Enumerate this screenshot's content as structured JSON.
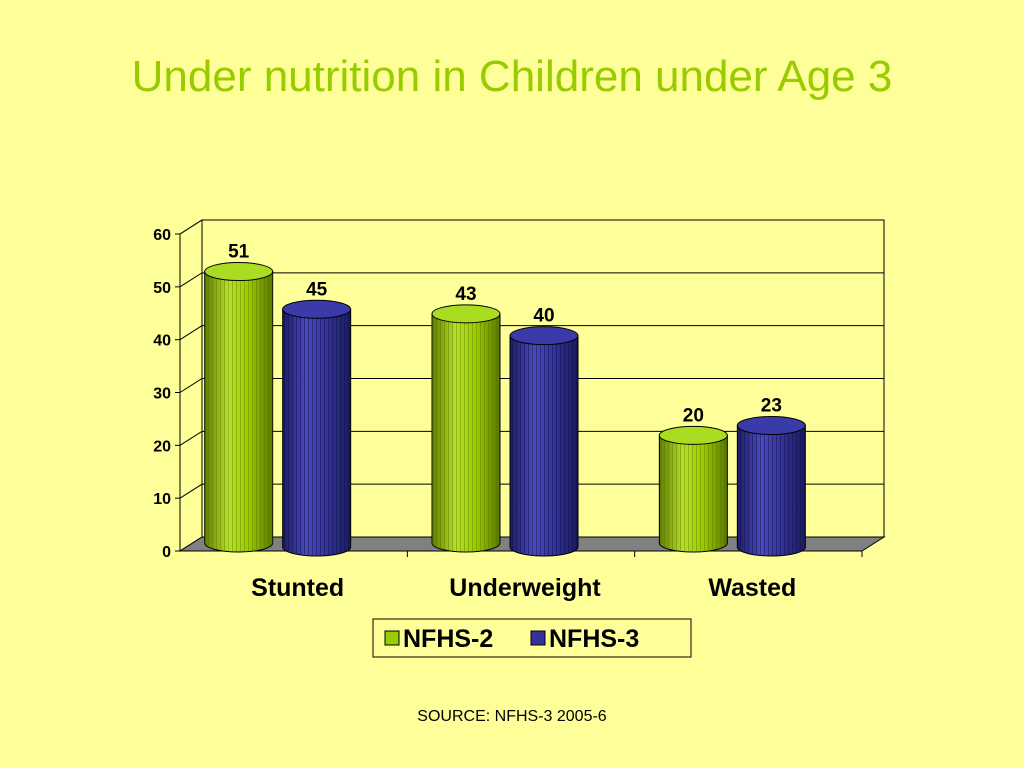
{
  "slide": {
    "title": "Under nutrition in Children under Age 3",
    "source": "SOURCE: NFHS-3 2005-6"
  },
  "colors": {
    "background": "#ffff99",
    "title": "#99cc00",
    "nfhs2": "#99cc00",
    "nfhs3": "#333399",
    "floor": "#808080"
  },
  "chart_data": {
    "type": "bar",
    "style": "3d-cylinder",
    "title": "",
    "xlabel": "",
    "ylabel": "",
    "categories": [
      "Stunted",
      "Underweight",
      "Wasted"
    ],
    "series": [
      {
        "name": "NFHS-2",
        "values": [
          51,
          43,
          20
        ]
      },
      {
        "name": "NFHS-3",
        "values": [
          45,
          40,
          23
        ]
      }
    ],
    "ylim": [
      0,
      60
    ],
    "yticks": [
      0,
      10,
      20,
      30,
      40,
      50,
      60
    ],
    "grid": true,
    "data_labels": true,
    "legend": "bottom"
  }
}
